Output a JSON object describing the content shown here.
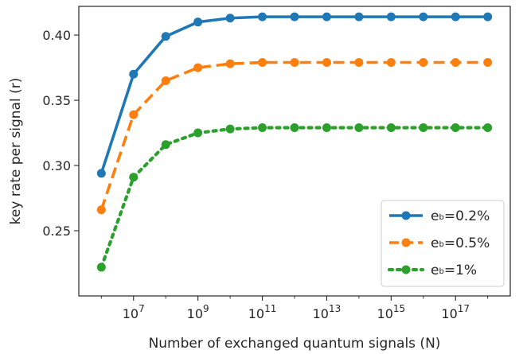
{
  "chart_data": {
    "type": "line",
    "xlabel": "Number of exchanged quantum signals (N)",
    "ylabel": "key rate per signal (r)",
    "x_scale": "log10",
    "x_exponents": [
      6,
      7,
      8,
      9,
      10,
      11,
      12,
      13,
      14,
      15,
      16,
      17,
      18
    ],
    "xlim_exponent": [
      5.3,
      18.7
    ],
    "ylim": [
      0.2,
      0.422
    ],
    "x_ticks": [
      {
        "exp": 7,
        "base": "10",
        "sup": "7"
      },
      {
        "exp": 9,
        "base": "10",
        "sup": "9"
      },
      {
        "exp": 11,
        "base": "10",
        "sup": "11"
      },
      {
        "exp": 13,
        "base": "10",
        "sup": "13"
      },
      {
        "exp": 15,
        "base": "10",
        "sup": "15"
      },
      {
        "exp": 17,
        "base": "10",
        "sup": "17"
      }
    ],
    "y_ticks": [
      {
        "value": 0.25,
        "label": "0.25"
      },
      {
        "value": 0.3,
        "label": "0.30"
      },
      {
        "value": 0.35,
        "label": "0.35"
      },
      {
        "value": 0.4,
        "label": "0.40"
      }
    ],
    "grid": false,
    "legend_position": "lower-right",
    "series": [
      {
        "name": "e_b=0.2%",
        "legend_main": "e",
        "legend_sub": "b",
        "legend_rest": "=0.2%",
        "color": "#1f77b4",
        "dash": "solid",
        "values": [
          0.294,
          0.37,
          0.399,
          0.41,
          0.413,
          0.414,
          0.414,
          0.414,
          0.414,
          0.414,
          0.414,
          0.414,
          0.414
        ]
      },
      {
        "name": "e_b=0.5%",
        "legend_main": "e",
        "legend_sub": "b",
        "legend_rest": "=0.5%",
        "color": "#ff7f0e",
        "dash": "dashed",
        "values": [
          0.266,
          0.339,
          0.365,
          0.375,
          0.378,
          0.379,
          0.379,
          0.379,
          0.379,
          0.379,
          0.379,
          0.379,
          0.379
        ]
      },
      {
        "name": "e_b=1%",
        "legend_main": "e",
        "legend_sub": "b",
        "legend_rest": "=1%",
        "color": "#2ca02c",
        "dash": "dotted",
        "values": [
          0.222,
          0.291,
          0.316,
          0.325,
          0.328,
          0.329,
          0.329,
          0.329,
          0.329,
          0.329,
          0.329,
          0.329,
          0.329
        ]
      }
    ]
  }
}
